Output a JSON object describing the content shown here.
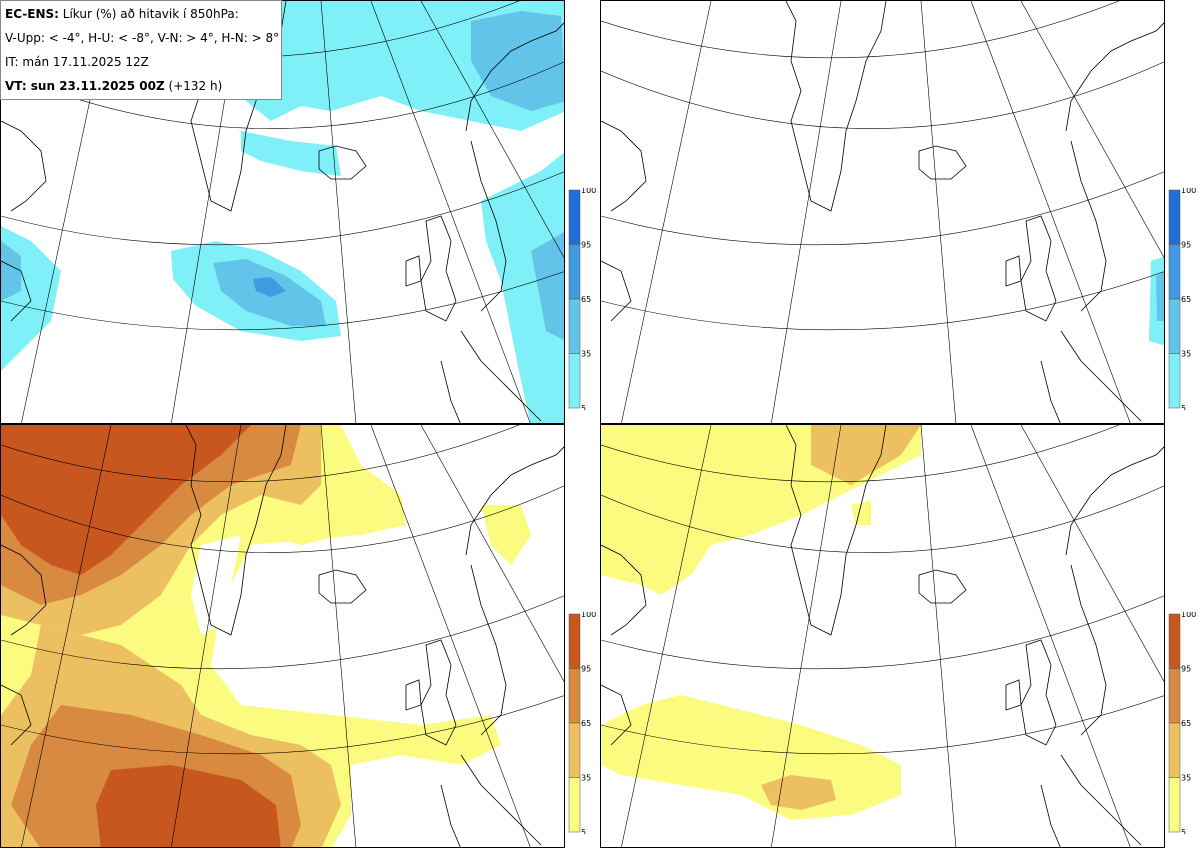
{
  "legend": {
    "line1_bold": "EC-ENS:",
    "line1_rest": " Líkur (%) að hitavik í 850hPa:",
    "line2": "V-Upp: < -4°, H-U: < -8°, V-N: > 4°, H-N: > 8°",
    "line3": "IT: mán 17.11.2025 12Z",
    "line4_bold": "VT: sun 23.11.2025 00Z",
    "line4_rest": " (+132 h)"
  },
  "colorbar": {
    "ticks": [
      "100",
      "95",
      "65",
      "35",
      "5"
    ],
    "cold_colors": [
      "#1f6fd6",
      "#3f9ae0",
      "#63c4ea",
      "#7ff0f8"
    ],
    "warm_colors": [
      "#c8561f",
      "#d88a40",
      "#ecc060",
      "#fbfb80"
    ]
  },
  "panels": [
    {
      "id": "V-Upp",
      "scheme": "cold"
    },
    {
      "id": "H-U",
      "scheme": "cold"
    },
    {
      "id": "V-N",
      "scheme": "warm"
    },
    {
      "id": "H-N",
      "scheme": "warm"
    }
  ]
}
